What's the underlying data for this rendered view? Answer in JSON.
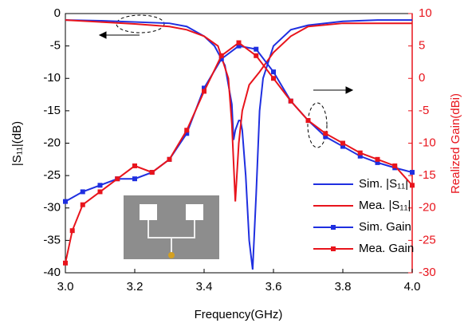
{
  "chart_data": {
    "type": "line",
    "xlabel": "Frequency(GHz)",
    "ylabel": "|S₁₁|(dB)",
    "y2label": "Realized Gain(dBi)",
    "xlim": [
      3.0,
      4.0
    ],
    "xticks": [
      {
        "value": 3,
        "label": "3.0"
      },
      3.2,
      3.4,
      3.6,
      3.8,
      {
        "value": 4,
        "label": "4.0"
      }
    ],
    "ylim": [
      -40,
      0
    ],
    "yticks": [
      0,
      -5,
      -10,
      -15,
      -20,
      -25,
      -30,
      -35,
      -40
    ],
    "y2lim": [
      -30,
      10
    ],
    "y2ticks": [
      10,
      5,
      0,
      -5,
      -10,
      -15,
      -20,
      -25,
      -30
    ],
    "y2color": "#e8141c",
    "legend": "lower right",
    "series": [
      {
        "name": "Sim. |S₁₁|",
        "color": "#1f2fe0",
        "marker": false,
        "x": [
          3.0,
          3.1,
          3.2,
          3.3,
          3.35,
          3.4,
          3.43,
          3.46,
          3.48,
          3.485,
          3.49,
          3.5,
          3.505,
          3.51,
          3.52,
          3.53,
          3.54,
          3.55,
          3.56,
          3.57,
          3.6,
          3.65,
          3.7,
          3.8,
          3.9,
          4.0
        ],
        "values": [
          -1,
          -1.1,
          -1.3,
          -1.5,
          -2,
          -3.5,
          -5,
          -8,
          -14,
          -19.5,
          -18,
          -16.5,
          -16.5,
          -18,
          -25,
          -35,
          -39.5,
          -28,
          -15,
          -10,
          -5,
          -2.5,
          -1.8,
          -1.2,
          -1,
          -1
        ]
      },
      {
        "name": "Mea. |S₁₁|",
        "color": "#e8141c",
        "marker": false,
        "x": [
          3.0,
          3.1,
          3.2,
          3.25,
          3.3,
          3.35,
          3.4,
          3.44,
          3.47,
          3.48,
          3.49,
          3.5,
          3.51,
          3.53,
          3.56,
          3.6,
          3.65,
          3.7,
          3.8,
          3.9,
          4.0
        ],
        "values": [
          -1,
          -1.3,
          -1.6,
          -1.8,
          -2,
          -2.5,
          -3.5,
          -5,
          -10,
          -17,
          -29,
          -20,
          -15,
          -11,
          -9,
          -6,
          -3.5,
          -2,
          -1.5,
          -1.5,
          -1.5
        ]
      },
      {
        "name": "Sim. Gain",
        "color": "#1f2fe0",
        "marker": true,
        "axis": "y2",
        "x": [
          3.0,
          3.05,
          3.1,
          3.15,
          3.2,
          3.25,
          3.3,
          3.35,
          3.4,
          3.45,
          3.5,
          3.55,
          3.6,
          3.65,
          3.7,
          3.75,
          3.8,
          3.85,
          3.9,
          3.95,
          4.0
        ],
        "values": [
          -19,
          -17.5,
          -16.5,
          -15.5,
          -15.5,
          -14.5,
          -12.5,
          -8.5,
          -1.5,
          3,
          5,
          4.5,
          1,
          -3.5,
          -6.5,
          -9,
          -10.5,
          -12,
          -13,
          -13.8,
          -14.5
        ]
      },
      {
        "name": "Mea. Gain",
        "color": "#e8141c",
        "marker": true,
        "axis": "y2",
        "x": [
          3.0,
          3.02,
          3.05,
          3.1,
          3.15,
          3.2,
          3.25,
          3.3,
          3.35,
          3.4,
          3.45,
          3.5,
          3.55,
          3.6,
          3.65,
          3.7,
          3.75,
          3.8,
          3.85,
          3.9,
          3.95,
          4.0
        ],
        "values": [
          -28.5,
          -23.5,
          -19.5,
          -17.5,
          -15.5,
          -13.5,
          -14.5,
          -12.5,
          -8,
          -2,
          3.5,
          5.5,
          3.5,
          0,
          -3.5,
          -6.5,
          -8.5,
          -10,
          -11.5,
          -12.5,
          -13.5,
          -16.5
        ]
      }
    ]
  }
}
